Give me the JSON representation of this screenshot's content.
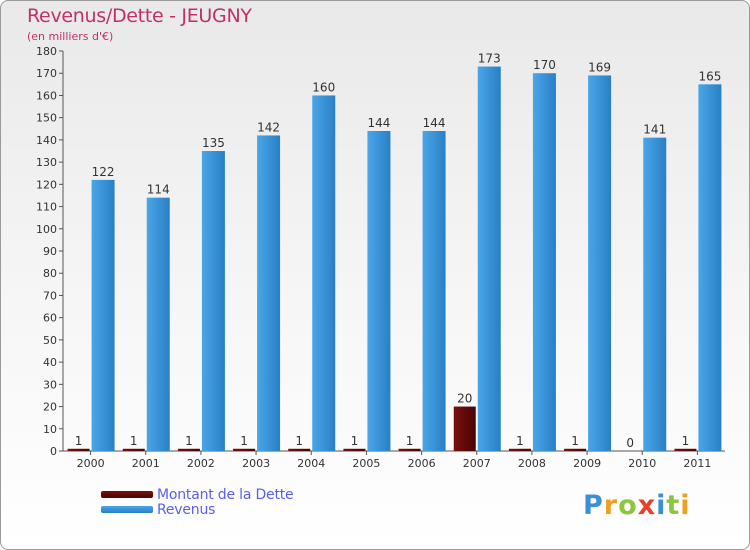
{
  "colors": {
    "debt": "#7a0f0f",
    "debt_dark": "#4a0505",
    "revenue": "#4aa6e8",
    "revenue_dark": "#2a7fc4",
    "title": "#c0306a",
    "legend_text": "#5a5ef0"
  },
  "logo": {
    "text": "Proxiti",
    "letters": [
      {
        "ch": "P",
        "color": "#3a8fd8"
      },
      {
        "ch": "r",
        "color": "#f0a020"
      },
      {
        "ch": "o",
        "color": "#8cc63e"
      },
      {
        "ch": "x",
        "color": "#e8402a"
      },
      {
        "ch": "i",
        "color": "#3a8fd8"
      },
      {
        "ch": "t",
        "color": "#8cc63e"
      },
      {
        "ch": "i",
        "color": "#f0a020"
      }
    ]
  },
  "chart_data": {
    "type": "bar",
    "title": "Revenus/Dette - JEUGNY",
    "subtitle": "(en milliers d'€)",
    "xlabel": "",
    "ylabel": "",
    "ylim": [
      0,
      180
    ],
    "ytick_step": 10,
    "grid": false,
    "legend_position": "bottom-left",
    "categories": [
      "2000",
      "2001",
      "2002",
      "2003",
      "2004",
      "2005",
      "2006",
      "2007",
      "2008",
      "2009",
      "2010",
      "2011"
    ],
    "series": [
      {
        "name": "Montant de la Dette",
        "values": [
          1,
          1,
          1,
          1,
          1,
          1,
          1,
          20,
          1,
          1,
          0,
          1
        ]
      },
      {
        "name": "Revenus",
        "values": [
          122,
          114,
          135,
          142,
          160,
          144,
          144,
          173,
          170,
          169,
          141,
          165
        ]
      }
    ]
  }
}
